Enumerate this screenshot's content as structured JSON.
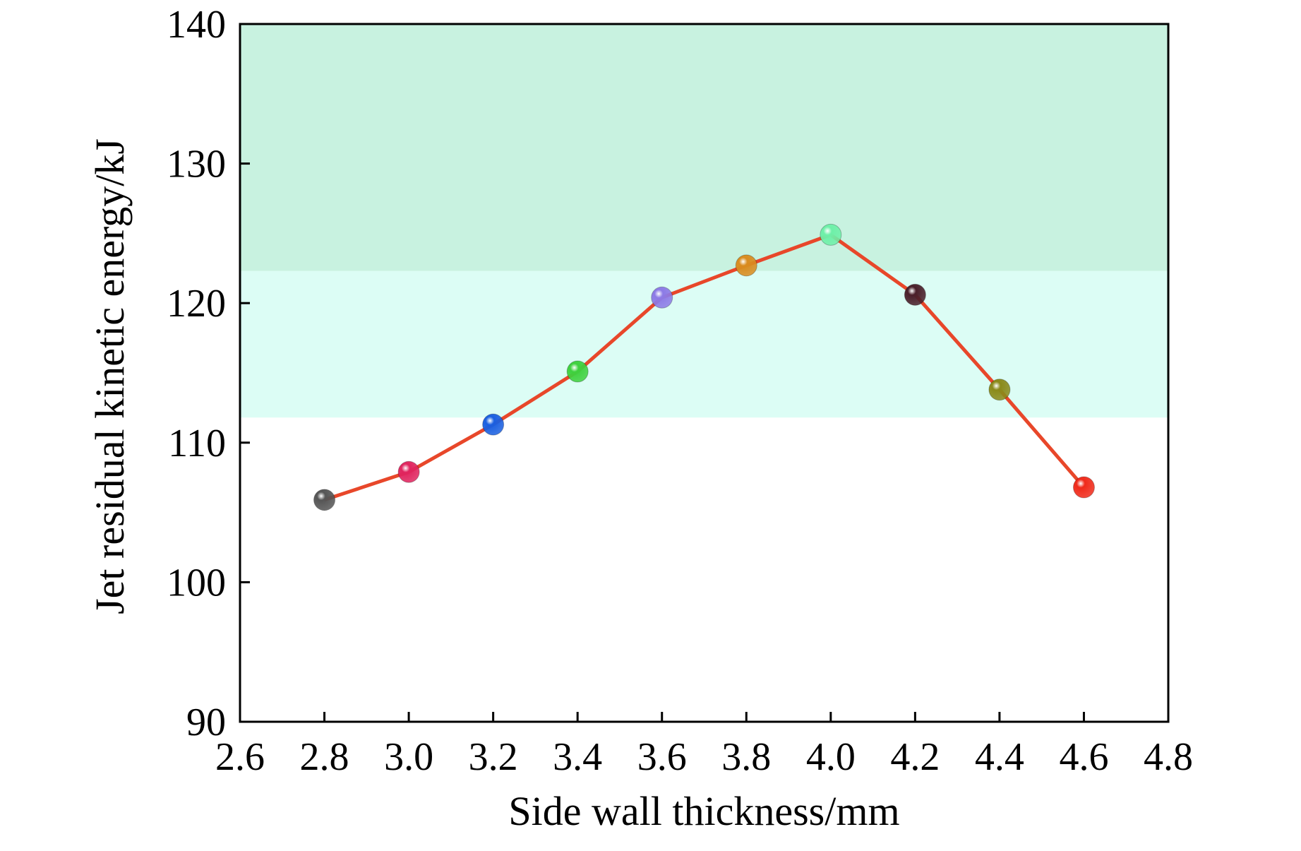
{
  "chart_data": {
    "type": "line",
    "xlabel": "Side wall thickness/mm",
    "ylabel": "Jet residual kinetic energy/kJ",
    "xlim": [
      2.6,
      4.8
    ],
    "ylim": [
      90,
      140
    ],
    "xticks": [
      "2.6",
      "2.8",
      "3.0",
      "3.2",
      "3.4",
      "3.6",
      "3.8",
      "4.0",
      "4.2",
      "4.4",
      "4.6",
      "4.8"
    ],
    "yticks": [
      "90",
      "100",
      "110",
      "120",
      "130",
      "140"
    ],
    "x": [
      2.8,
      3.0,
      3.2,
      3.4,
      3.6,
      3.8,
      4.0,
      4.2,
      4.4,
      4.6
    ],
    "y": [
      105.9,
      107.9,
      111.3,
      115.1,
      120.4,
      122.7,
      124.9,
      120.6,
      113.8,
      106.8
    ],
    "line_color": "#e8472a",
    "point_colors": [
      "#555555",
      "#e0245e",
      "#1a5fe0",
      "#3ed13e",
      "#8c7ae6",
      "#d98c1f",
      "#6ef0a8",
      "#4a1f2a",
      "#8a8a1a",
      "#f02a1a"
    ],
    "bands": [
      {
        "from": 122.3,
        "to": 140,
        "color": "#c8f2e0"
      },
      {
        "from": 111.8,
        "to": 122.3,
        "color": "#dcfdf5"
      }
    ],
    "grid": false
  }
}
